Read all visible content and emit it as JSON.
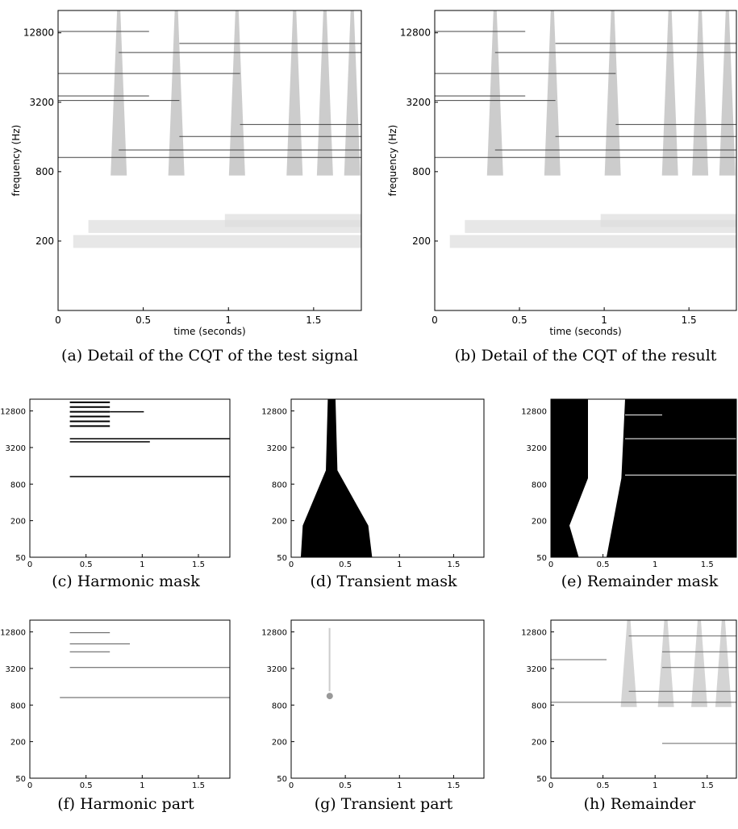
{
  "figure": {
    "large_axes": {
      "xlabel": "time (seconds)",
      "ylabel": "frequency (Hz)",
      "yscale": "log",
      "xlim": [
        0,
        1.78
      ],
      "ylim": [
        50,
        20000
      ],
      "xticks": [
        0,
        0.5,
        1,
        1.5
      ],
      "yticks": [
        200,
        800,
        3200,
        12800
      ]
    },
    "small_axes": {
      "yscale": "log",
      "xlim": [
        0,
        1.78
      ],
      "ylim": [
        50,
        20000
      ],
      "xticks": [
        0,
        0.5,
        1,
        1.5
      ],
      "yticks": [
        50,
        200,
        800,
        3200,
        12800
      ]
    },
    "captions": [
      "(a) Detail of the CQT of the test signal",
      "(b) Detail of the CQT of the result",
      "(c) Harmonic mask",
      "(d) Transient mask",
      "(e) Remainder mask",
      "(f) Harmonic part",
      "(g) Transient part",
      "(h) Remainder"
    ]
  }
}
